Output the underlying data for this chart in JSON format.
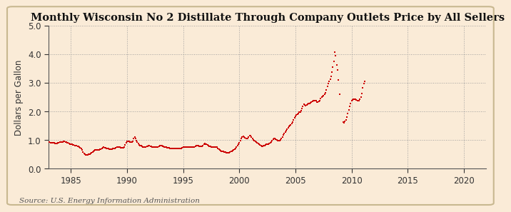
{
  "title": "Monthly Wisconsin No 2 Distillate Through Company Outlets Price by All Sellers",
  "ylabel": "Dollars per Gallon",
  "source": "Source: U.S. Energy Information Administration",
  "xlim": [
    1983,
    2022
  ],
  "ylim": [
    0.0,
    5.0
  ],
  "xticks": [
    1985,
    1990,
    1995,
    2000,
    2005,
    2010,
    2015,
    2020
  ],
  "yticks": [
    0.0,
    1.0,
    2.0,
    3.0,
    4.0,
    5.0
  ],
  "marker_color": "#cc0000",
  "bg_color": "#faebd7",
  "title_fontsize": 10.5,
  "axis_fontsize": 8.5,
  "tick_fontsize": 8.5,
  "source_fontsize": 7.5,
  "data": [
    [
      1983.0,
      0.93
    ],
    [
      1983.083,
      0.93
    ],
    [
      1983.167,
      0.91
    ],
    [
      1983.25,
      0.9
    ],
    [
      1983.333,
      0.9
    ],
    [
      1983.417,
      0.89
    ],
    [
      1983.5,
      0.89
    ],
    [
      1983.583,
      0.88
    ],
    [
      1983.667,
      0.87
    ],
    [
      1983.75,
      0.88
    ],
    [
      1983.833,
      0.89
    ],
    [
      1983.917,
      0.91
    ],
    [
      1984.0,
      0.92
    ],
    [
      1984.083,
      0.93
    ],
    [
      1984.167,
      0.93
    ],
    [
      1984.25,
      0.93
    ],
    [
      1984.333,
      0.94
    ],
    [
      1984.417,
      0.94
    ],
    [
      1984.5,
      0.93
    ],
    [
      1984.583,
      0.92
    ],
    [
      1984.667,
      0.91
    ],
    [
      1984.75,
      0.9
    ],
    [
      1984.833,
      0.88
    ],
    [
      1984.917,
      0.86
    ],
    [
      1985.0,
      0.85
    ],
    [
      1985.083,
      0.84
    ],
    [
      1985.167,
      0.83
    ],
    [
      1985.25,
      0.82
    ],
    [
      1985.333,
      0.81
    ],
    [
      1985.417,
      0.8
    ],
    [
      1985.5,
      0.79
    ],
    [
      1985.583,
      0.78
    ],
    [
      1985.667,
      0.77
    ],
    [
      1985.75,
      0.75
    ],
    [
      1985.833,
      0.73
    ],
    [
      1985.917,
      0.7
    ],
    [
      1986.0,
      0.65
    ],
    [
      1986.083,
      0.58
    ],
    [
      1986.167,
      0.52
    ],
    [
      1986.25,
      0.49
    ],
    [
      1986.333,
      0.48
    ],
    [
      1986.417,
      0.48
    ],
    [
      1986.5,
      0.48
    ],
    [
      1986.583,
      0.49
    ],
    [
      1986.667,
      0.5
    ],
    [
      1986.75,
      0.52
    ],
    [
      1986.833,
      0.55
    ],
    [
      1986.917,
      0.58
    ],
    [
      1987.0,
      0.61
    ],
    [
      1987.083,
      0.63
    ],
    [
      1987.167,
      0.64
    ],
    [
      1987.25,
      0.65
    ],
    [
      1987.333,
      0.65
    ],
    [
      1987.417,
      0.65
    ],
    [
      1987.5,
      0.66
    ],
    [
      1987.583,
      0.67
    ],
    [
      1987.667,
      0.68
    ],
    [
      1987.75,
      0.69
    ],
    [
      1987.833,
      0.72
    ],
    [
      1987.917,
      0.74
    ],
    [
      1988.0,
      0.73
    ],
    [
      1988.083,
      0.72
    ],
    [
      1988.167,
      0.71
    ],
    [
      1988.25,
      0.7
    ],
    [
      1988.333,
      0.69
    ],
    [
      1988.417,
      0.68
    ],
    [
      1988.5,
      0.68
    ],
    [
      1988.583,
      0.68
    ],
    [
      1988.667,
      0.68
    ],
    [
      1988.75,
      0.69
    ],
    [
      1988.833,
      0.7
    ],
    [
      1988.917,
      0.7
    ],
    [
      1989.0,
      0.72
    ],
    [
      1989.083,
      0.74
    ],
    [
      1989.167,
      0.75
    ],
    [
      1989.25,
      0.75
    ],
    [
      1989.333,
      0.74
    ],
    [
      1989.417,
      0.73
    ],
    [
      1989.5,
      0.72
    ],
    [
      1989.583,
      0.72
    ],
    [
      1989.667,
      0.73
    ],
    [
      1989.75,
      0.76
    ],
    [
      1989.833,
      0.82
    ],
    [
      1989.917,
      0.9
    ],
    [
      1990.0,
      0.96
    ],
    [
      1990.083,
      0.96
    ],
    [
      1990.167,
      0.94
    ],
    [
      1990.25,
      0.93
    ],
    [
      1990.333,
      0.93
    ],
    [
      1990.417,
      0.93
    ],
    [
      1990.5,
      0.95
    ],
    [
      1990.583,
      1.06
    ],
    [
      1990.667,
      1.1
    ],
    [
      1990.75,
      1.05
    ],
    [
      1990.833,
      0.98
    ],
    [
      1990.917,
      0.92
    ],
    [
      1991.0,
      0.87
    ],
    [
      1991.083,
      0.82
    ],
    [
      1991.167,
      0.8
    ],
    [
      1991.25,
      0.79
    ],
    [
      1991.333,
      0.77
    ],
    [
      1991.417,
      0.76
    ],
    [
      1991.5,
      0.76
    ],
    [
      1991.583,
      0.76
    ],
    [
      1991.667,
      0.76
    ],
    [
      1991.75,
      0.77
    ],
    [
      1991.833,
      0.78
    ],
    [
      1991.917,
      0.79
    ],
    [
      1992.0,
      0.79
    ],
    [
      1992.083,
      0.78
    ],
    [
      1992.167,
      0.77
    ],
    [
      1992.25,
      0.76
    ],
    [
      1992.333,
      0.75
    ],
    [
      1992.417,
      0.74
    ],
    [
      1992.5,
      0.74
    ],
    [
      1992.583,
      0.74
    ],
    [
      1992.667,
      0.75
    ],
    [
      1992.75,
      0.76
    ],
    [
      1992.833,
      0.78
    ],
    [
      1992.917,
      0.8
    ],
    [
      1993.0,
      0.8
    ],
    [
      1993.083,
      0.79
    ],
    [
      1993.167,
      0.78
    ],
    [
      1993.25,
      0.77
    ],
    [
      1993.333,
      0.76
    ],
    [
      1993.417,
      0.75
    ],
    [
      1993.5,
      0.74
    ],
    [
      1993.583,
      0.73
    ],
    [
      1993.667,
      0.73
    ],
    [
      1993.75,
      0.72
    ],
    [
      1993.833,
      0.71
    ],
    [
      1993.917,
      0.7
    ],
    [
      1994.0,
      0.69
    ],
    [
      1994.083,
      0.69
    ],
    [
      1994.167,
      0.69
    ],
    [
      1994.25,
      0.69
    ],
    [
      1994.333,
      0.69
    ],
    [
      1994.417,
      0.69
    ],
    [
      1994.5,
      0.69
    ],
    [
      1994.583,
      0.69
    ],
    [
      1994.667,
      0.69
    ],
    [
      1994.75,
      0.7
    ],
    [
      1994.833,
      0.71
    ],
    [
      1994.917,
      0.73
    ],
    [
      1995.0,
      0.75
    ],
    [
      1995.083,
      0.76
    ],
    [
      1995.167,
      0.76
    ],
    [
      1995.25,
      0.76
    ],
    [
      1995.333,
      0.75
    ],
    [
      1995.417,
      0.75
    ],
    [
      1995.5,
      0.74
    ],
    [
      1995.583,
      0.74
    ],
    [
      1995.667,
      0.74
    ],
    [
      1995.75,
      0.74
    ],
    [
      1995.833,
      0.74
    ],
    [
      1995.917,
      0.74
    ],
    [
      1996.0,
      0.76
    ],
    [
      1996.083,
      0.78
    ],
    [
      1996.167,
      0.8
    ],
    [
      1996.25,
      0.8
    ],
    [
      1996.333,
      0.79
    ],
    [
      1996.417,
      0.78
    ],
    [
      1996.5,
      0.77
    ],
    [
      1996.583,
      0.77
    ],
    [
      1996.667,
      0.78
    ],
    [
      1996.75,
      0.8
    ],
    [
      1996.833,
      0.84
    ],
    [
      1996.917,
      0.87
    ],
    [
      1997.0,
      0.86
    ],
    [
      1997.083,
      0.84
    ],
    [
      1997.167,
      0.82
    ],
    [
      1997.25,
      0.8
    ],
    [
      1997.333,
      0.78
    ],
    [
      1997.417,
      0.77
    ],
    [
      1997.5,
      0.76
    ],
    [
      1997.583,
      0.76
    ],
    [
      1997.667,
      0.76
    ],
    [
      1997.75,
      0.76
    ],
    [
      1997.833,
      0.76
    ],
    [
      1997.917,
      0.76
    ],
    [
      1998.0,
      0.74
    ],
    [
      1998.083,
      0.71
    ],
    [
      1998.167,
      0.68
    ],
    [
      1998.25,
      0.65
    ],
    [
      1998.333,
      0.62
    ],
    [
      1998.417,
      0.61
    ],
    [
      1998.5,
      0.6
    ],
    [
      1998.583,
      0.59
    ],
    [
      1998.667,
      0.58
    ],
    [
      1998.75,
      0.57
    ],
    [
      1998.833,
      0.56
    ],
    [
      1998.917,
      0.55
    ],
    [
      1999.0,
      0.55
    ],
    [
      1999.083,
      0.56
    ],
    [
      1999.167,
      0.57
    ],
    [
      1999.25,
      0.59
    ],
    [
      1999.333,
      0.61
    ],
    [
      1999.417,
      0.63
    ],
    [
      1999.5,
      0.65
    ],
    [
      1999.583,
      0.68
    ],
    [
      1999.667,
      0.71
    ],
    [
      1999.75,
      0.74
    ],
    [
      1999.833,
      0.79
    ],
    [
      1999.917,
      0.84
    ],
    [
      2000.0,
      0.9
    ],
    [
      2000.083,
      0.97
    ],
    [
      2000.167,
      1.04
    ],
    [
      2000.25,
      1.1
    ],
    [
      2000.333,
      1.12
    ],
    [
      2000.417,
      1.1
    ],
    [
      2000.5,
      1.07
    ],
    [
      2000.583,
      1.05
    ],
    [
      2000.667,
      1.04
    ],
    [
      2000.75,
      1.05
    ],
    [
      2000.833,
      1.09
    ],
    [
      2000.917,
      1.14
    ],
    [
      2001.0,
      1.14
    ],
    [
      2001.083,
      1.1
    ],
    [
      2001.167,
      1.05
    ],
    [
      2001.25,
      1.01
    ],
    [
      2001.333,
      0.97
    ],
    [
      2001.417,
      0.94
    ],
    [
      2001.5,
      0.92
    ],
    [
      2001.583,
      0.9
    ],
    [
      2001.667,
      0.87
    ],
    [
      2001.75,
      0.84
    ],
    [
      2001.833,
      0.82
    ],
    [
      2001.917,
      0.79
    ],
    [
      2002.0,
      0.78
    ],
    [
      2002.083,
      0.78
    ],
    [
      2002.167,
      0.79
    ],
    [
      2002.25,
      0.8
    ],
    [
      2002.333,
      0.82
    ],
    [
      2002.417,
      0.84
    ],
    [
      2002.5,
      0.85
    ],
    [
      2002.583,
      0.86
    ],
    [
      2002.667,
      0.87
    ],
    [
      2002.75,
      0.89
    ],
    [
      2002.833,
      0.92
    ],
    [
      2002.917,
      0.97
    ],
    [
      2003.0,
      1.03
    ],
    [
      2003.083,
      1.06
    ],
    [
      2003.167,
      1.06
    ],
    [
      2003.25,
      1.03
    ],
    [
      2003.333,
      1.0
    ],
    [
      2003.417,
      0.98
    ],
    [
      2003.5,
      0.97
    ],
    [
      2003.583,
      0.98
    ],
    [
      2003.667,
      1.0
    ],
    [
      2003.75,
      1.04
    ],
    [
      2003.833,
      1.1
    ],
    [
      2003.917,
      1.17
    ],
    [
      2004.0,
      1.22
    ],
    [
      2004.083,
      1.27
    ],
    [
      2004.167,
      1.32
    ],
    [
      2004.25,
      1.38
    ],
    [
      2004.333,
      1.43
    ],
    [
      2004.417,
      1.47
    ],
    [
      2004.5,
      1.49
    ],
    [
      2004.583,
      1.52
    ],
    [
      2004.667,
      1.56
    ],
    [
      2004.75,
      1.62
    ],
    [
      2004.833,
      1.69
    ],
    [
      2004.917,
      1.76
    ],
    [
      2005.0,
      1.82
    ],
    [
      2005.083,
      1.86
    ],
    [
      2005.167,
      1.89
    ],
    [
      2005.25,
      1.92
    ],
    [
      2005.333,
      1.96
    ],
    [
      2005.417,
      1.98
    ],
    [
      2005.5,
      2.03
    ],
    [
      2005.583,
      2.1
    ],
    [
      2005.667,
      2.17
    ],
    [
      2005.75,
      2.24
    ],
    [
      2005.833,
      2.22
    ],
    [
      2005.917,
      2.2
    ],
    [
      2006.0,
      2.22
    ],
    [
      2006.083,
      2.24
    ],
    [
      2006.167,
      2.26
    ],
    [
      2006.25,
      2.28
    ],
    [
      2006.333,
      2.3
    ],
    [
      2006.417,
      2.33
    ],
    [
      2006.5,
      2.35
    ],
    [
      2006.583,
      2.37
    ],
    [
      2006.667,
      2.38
    ],
    [
      2006.75,
      2.38
    ],
    [
      2006.833,
      2.36
    ],
    [
      2006.917,
      2.33
    ],
    [
      2007.0,
      2.32
    ],
    [
      2007.083,
      2.34
    ],
    [
      2007.167,
      2.38
    ],
    [
      2007.25,
      2.44
    ],
    [
      2007.333,
      2.49
    ],
    [
      2007.417,
      2.52
    ],
    [
      2007.5,
      2.55
    ],
    [
      2007.583,
      2.59
    ],
    [
      2007.667,
      2.65
    ],
    [
      2007.75,
      2.74
    ],
    [
      2007.833,
      2.87
    ],
    [
      2007.917,
      2.98
    ],
    [
      2008.0,
      3.05
    ],
    [
      2008.083,
      3.12
    ],
    [
      2008.167,
      3.22
    ],
    [
      2008.25,
      3.37
    ],
    [
      2008.333,
      3.54
    ],
    [
      2008.417,
      3.73
    ],
    [
      2008.5,
      4.06
    ],
    [
      2008.583,
      3.95
    ],
    [
      2008.667,
      3.62
    ],
    [
      2008.75,
      3.45
    ],
    [
      2008.833,
      3.1
    ],
    [
      2008.917,
      2.6
    ],
    [
      2009.25,
      1.62
    ],
    [
      2009.333,
      1.6
    ],
    [
      2009.417,
      1.64
    ],
    [
      2009.5,
      1.7
    ],
    [
      2009.583,
      1.8
    ],
    [
      2009.667,
      1.92
    ],
    [
      2009.75,
      2.05
    ],
    [
      2009.833,
      2.18
    ],
    [
      2009.917,
      2.28
    ],
    [
      2010.0,
      2.37
    ],
    [
      2010.083,
      2.4
    ],
    [
      2010.167,
      2.42
    ],
    [
      2010.25,
      2.43
    ],
    [
      2010.333,
      2.42
    ],
    [
      2010.417,
      2.4
    ],
    [
      2010.5,
      2.38
    ],
    [
      2010.583,
      2.37
    ],
    [
      2010.667,
      2.38
    ],
    [
      2010.75,
      2.42
    ],
    [
      2010.833,
      2.5
    ],
    [
      2010.917,
      2.62
    ],
    [
      2011.0,
      2.82
    ],
    [
      2011.083,
      2.98
    ],
    [
      2011.167,
      3.05
    ]
  ]
}
